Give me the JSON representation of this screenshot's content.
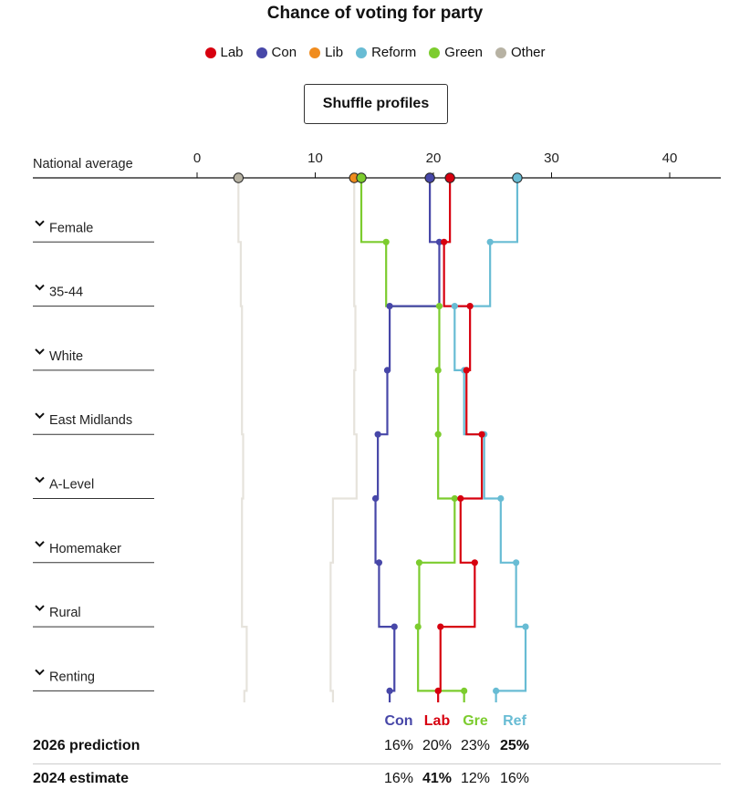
{
  "title": "Chance of voting for party",
  "legend": [
    {
      "label": "Lab",
      "color": "#d7000f"
    },
    {
      "label": "Con",
      "color": "#4747a8"
    },
    {
      "label": "Lib",
      "color": "#f08c1e"
    },
    {
      "label": "Reform",
      "color": "#68bcd4"
    },
    {
      "label": "Green",
      "color": "#7ccc2e"
    },
    {
      "label": "Other",
      "color": "#b7b2a3"
    }
  ],
  "shuffle_label": "Shuffle profiles",
  "chart_data": {
    "type": "line",
    "title": "Chance of voting for party",
    "x_ticks": [
      0,
      10,
      20,
      30,
      40
    ],
    "xlim": [
      -14,
      44.5
    ],
    "rows": [
      "National average",
      "Female",
      "35-44",
      "White",
      "East Midlands",
      "A-Level",
      "Homemaker",
      "Rural",
      "Renting"
    ],
    "series": [
      {
        "name": "Other",
        "color": "#e6e3dc",
        "dot": "#b7b2a3",
        "values": [
          3.5,
          3.7,
          3.8,
          3.8,
          3.9,
          3.8,
          3.8,
          4.2,
          4.0
        ],
        "final_dot": false
      },
      {
        "name": "Lib",
        "color": "#e6e3dc",
        "dot": "#f08c1e",
        "values": [
          13.3,
          13.3,
          13.4,
          13.3,
          13.5,
          11.5,
          11.3,
          11.3,
          11.5
        ],
        "final_dot": false
      },
      {
        "name": "Con",
        "color": "#4747a8",
        "dot": "#4747a8",
        "values": [
          19.7,
          20.5,
          16.3,
          16.1,
          15.3,
          15.1,
          15.4,
          16.7,
          16.3
        ],
        "final_dot": true
      },
      {
        "name": "Lab",
        "color": "#d7000f",
        "dot": "#d7000f",
        "values": [
          21.4,
          20.9,
          23.1,
          22.8,
          24.1,
          22.3,
          23.5,
          20.6,
          20.4
        ],
        "final_dot": true
      },
      {
        "name": "Green",
        "color": "#7ccc2e",
        "dot": "#7ccc2e",
        "values": [
          13.9,
          16.0,
          20.5,
          20.4,
          20.4,
          21.8,
          18.8,
          18.7,
          22.6
        ],
        "final_dot": true
      },
      {
        "name": "Reform",
        "color": "#68bcd4",
        "dot": "#68bcd4",
        "values": [
          27.1,
          24.8,
          21.8,
          22.6,
          24.3,
          25.7,
          27.0,
          27.8,
          25.3
        ],
        "final_dot": true
      }
    ]
  },
  "summary": {
    "headers": [
      {
        "label": "Con",
        "color": "#4747a8"
      },
      {
        "label": "Lab",
        "color": "#d7000f"
      },
      {
        "label": "Gre",
        "color": "#7ccc2e"
      },
      {
        "label": "Ref",
        "color": "#68bcd4"
      }
    ],
    "rows": [
      {
        "label": "2026 prediction",
        "values": [
          "16%",
          "20%",
          "23%",
          "25%"
        ],
        "bold_index": 3
      },
      {
        "label": "2024 estimate",
        "values": [
          "16%",
          "41%",
          "12%",
          "16%"
        ],
        "bold_index": 1
      }
    ]
  }
}
